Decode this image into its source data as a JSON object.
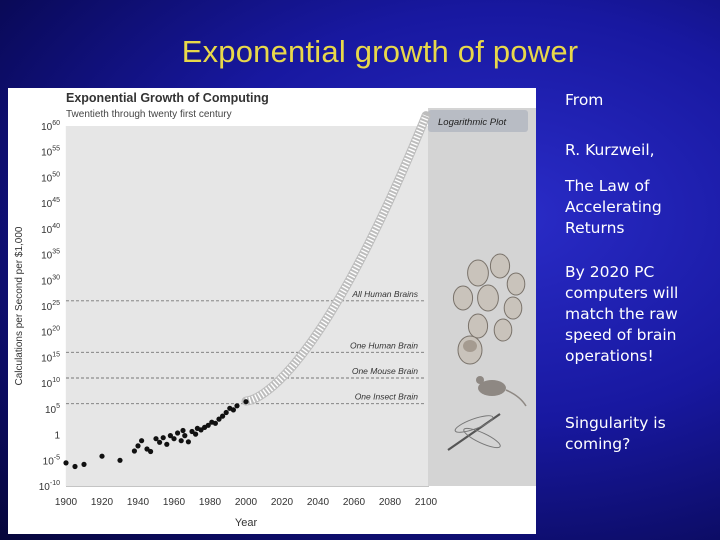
{
  "slide": {
    "title": "Exponential growth of power",
    "notes": [
      "From",
      "R. Kurzweil,",
      "The Law of Accelerating Returns",
      "By 2020 PC computers will match the raw speed of brain operations!",
      "Singularity is coming?"
    ]
  },
  "chart_data": {
    "type": "scatter",
    "title": "Exponential Growth of Computing",
    "subtitle": "Twentieth through twenty first century",
    "xlabel": "Year",
    "ylabel": "Calculations per Second per $1,000",
    "xlim": [
      1900,
      2100
    ],
    "ylim_log10": [
      -10,
      60
    ],
    "log_scale_y": true,
    "x_ticks": [
      "1900",
      "1920",
      "1940",
      "1960",
      "1980",
      "2000",
      "2020",
      "2040",
      "2060",
      "2080",
      "2100"
    ],
    "y_ticks": [
      {
        "base": "10",
        "exp": "60",
        "log": 60
      },
      {
        "base": "10",
        "exp": "55",
        "log": 55
      },
      {
        "base": "10",
        "exp": "50",
        "log": 50
      },
      {
        "base": "10",
        "exp": "45",
        "log": 45
      },
      {
        "base": "10",
        "exp": "40",
        "log": 40
      },
      {
        "base": "10",
        "exp": "35",
        "log": 35
      },
      {
        "base": "10",
        "exp": "30",
        "log": 30
      },
      {
        "base": "10",
        "exp": "25",
        "log": 25
      },
      {
        "base": "10",
        "exp": "20",
        "log": 20
      },
      {
        "base": "10",
        "exp": "15",
        "log": 15
      },
      {
        "base": "10",
        "exp": "10",
        "log": 10
      },
      {
        "base": "10",
        "exp": "5",
        "log": 5
      },
      {
        "base": "1",
        "exp": "",
        "log": 0
      },
      {
        "base": "10",
        "exp": "-5",
        "log": -5
      },
      {
        "base": "10",
        "exp": "-10",
        "log": -10
      }
    ],
    "legend_box": "Logarithmic Plot",
    "reference_lines": [
      {
        "label": "All Human Brains",
        "log": 26
      },
      {
        "label": "One Human Brain",
        "log": 16
      },
      {
        "label": "One Mouse Brain",
        "log": 11
      },
      {
        "label": "One Insect Brain",
        "log": 6
      }
    ],
    "observed_points": [
      {
        "x": 1900,
        "y": -5.5
      },
      {
        "x": 1905,
        "y": -6.2
      },
      {
        "x": 1910,
        "y": -5.8
      },
      {
        "x": 1920,
        "y": -4.2
      },
      {
        "x": 1930,
        "y": -5.0
      },
      {
        "x": 1938,
        "y": -3.2
      },
      {
        "x": 1940,
        "y": -2.2
      },
      {
        "x": 1942,
        "y": -1.2
      },
      {
        "x": 1945,
        "y": -2.8
      },
      {
        "x": 1947,
        "y": -3.3
      },
      {
        "x": 1950,
        "y": -0.8
      },
      {
        "x": 1952,
        "y": -1.5
      },
      {
        "x": 1954,
        "y": -0.6
      },
      {
        "x": 1956,
        "y": -1.9
      },
      {
        "x": 1958,
        "y": -0.2
      },
      {
        "x": 1960,
        "y": -0.8
      },
      {
        "x": 1962,
        "y": 0.3
      },
      {
        "x": 1964,
        "y": -1.2
      },
      {
        "x": 1965,
        "y": 0.8
      },
      {
        "x": 1966,
        "y": -0.2
      },
      {
        "x": 1968,
        "y": -1.4
      },
      {
        "x": 1970,
        "y": 0.6
      },
      {
        "x": 1972,
        "y": 0.1
      },
      {
        "x": 1973,
        "y": 1.2
      },
      {
        "x": 1975,
        "y": 0.9
      },
      {
        "x": 1977,
        "y": 1.4
      },
      {
        "x": 1979,
        "y": 1.8
      },
      {
        "x": 1981,
        "y": 2.4
      },
      {
        "x": 1983,
        "y": 2.2
      },
      {
        "x": 1985,
        "y": 3.0
      },
      {
        "x": 1987,
        "y": 3.6
      },
      {
        "x": 1989,
        "y": 4.3
      },
      {
        "x": 1991,
        "y": 5.1
      },
      {
        "x": 1993,
        "y": 4.8
      },
      {
        "x": 1995,
        "y": 5.6
      },
      {
        "x": 2000,
        "y": 6.4
      }
    ],
    "projection": {
      "from_year": 2000,
      "to_year": 2100,
      "start_log": 6.5,
      "end_log": 62
    }
  }
}
